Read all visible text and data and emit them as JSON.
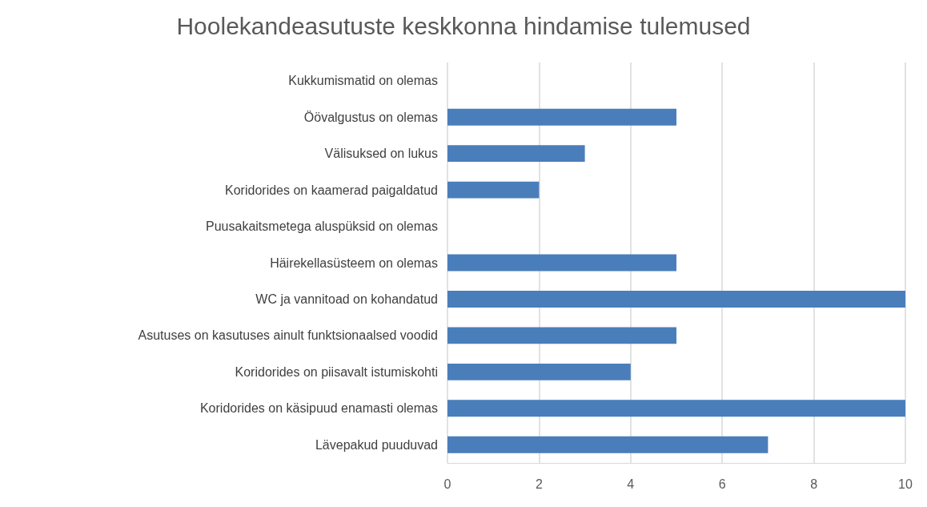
{
  "chart_data": {
    "type": "bar",
    "orientation": "horizontal",
    "title": "Hoolekandeasutuste keskkonna hindamise tulemused",
    "categories": [
      "Kukkumismatid on olemas",
      "Öövalgustus on olemas",
      "Välisuksed on lukus",
      "Koridorides on kaamerad paigaldatud",
      "Puusakaitsmetega aluspüksid on olemas",
      "Häirekellasüsteem on olemas",
      "WC ja vannitoad on kohandatud",
      "Asutuses on kasutuses ainult funktsionaalsed voodid",
      "Koridorides on piisavalt istumiskohti",
      "Koridorides on käsipuud enamasti olemas",
      "Lävepakud puuduvad"
    ],
    "values": [
      0,
      5,
      3,
      2,
      0,
      5,
      10,
      5,
      4,
      10,
      7
    ],
    "color": "#4a7ebb",
    "xlim": [
      0,
      10
    ],
    "xticks": [
      0,
      2,
      4,
      6,
      8,
      10
    ],
    "grid": "x"
  }
}
